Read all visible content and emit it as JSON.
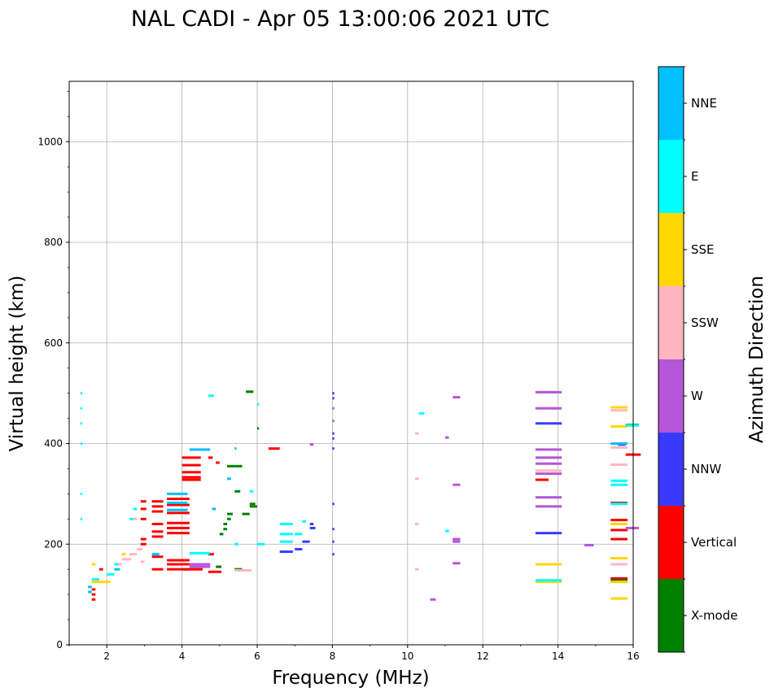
{
  "chart_data": {
    "type": "scatter",
    "title": "NAL CADI - Apr 05 13:00:06 2021 UTC",
    "xlabel": "Frequency (MHz)",
    "ylabel": "Virtual height (km)",
    "xlim": [
      1.0,
      16.0
    ],
    "ylim": [
      0,
      1120
    ],
    "xticks": [
      2,
      4,
      6,
      8,
      10,
      12,
      14,
      16
    ],
    "yticks": [
      0,
      200,
      400,
      600,
      800,
      1000
    ],
    "grid": true,
    "colorbar": {
      "label": "Azimuth Direction",
      "categories": [
        {
          "name": "X-mode",
          "color": "#008000"
        },
        {
          "name": "Vertical",
          "color": "#ff0000"
        },
        {
          "name": "NNW",
          "color": "#3a3aff"
        },
        {
          "name": "W",
          "color": "#b556d8"
        },
        {
          "name": "SSW",
          "color": "#ffb6c1"
        },
        {
          "name": "SSE",
          "color": "#ffd700"
        },
        {
          "name": "E",
          "color": "#00ffff"
        },
        {
          "name": "NNE",
          "color": "#00bfff"
        }
      ]
    },
    "series": [
      {
        "name": "Vertical",
        "points": [
          [
            1.6,
            90,
            0.1
          ],
          [
            1.6,
            100,
            0.1
          ],
          [
            1.6,
            110,
            0.1
          ],
          [
            1.8,
            150,
            0.1
          ],
          [
            2.9,
            200,
            0.15
          ],
          [
            2.9,
            210,
            0.15
          ],
          [
            2.9,
            250,
            0.15
          ],
          [
            2.9,
            270,
            0.15
          ],
          [
            2.9,
            285,
            0.15
          ],
          [
            3.2,
            150,
            0.3
          ],
          [
            3.2,
            175,
            0.3
          ],
          [
            3.2,
            215,
            0.3
          ],
          [
            3.2,
            225,
            0.3
          ],
          [
            3.2,
            240,
            0.3
          ],
          [
            3.2,
            265,
            0.3
          ],
          [
            3.2,
            275,
            0.3
          ],
          [
            3.2,
            285,
            0.3
          ],
          [
            3.6,
            150,
            0.6
          ],
          [
            3.6,
            160,
            0.6
          ],
          [
            3.6,
            168,
            0.6
          ],
          [
            3.6,
            222,
            0.6
          ],
          [
            3.6,
            232,
            0.6
          ],
          [
            3.6,
            242,
            0.6
          ],
          [
            3.6,
            262,
            0.6
          ],
          [
            3.6,
            278,
            0.6
          ],
          [
            3.6,
            290,
            0.6
          ],
          [
            4.0,
            150,
            0.55
          ],
          [
            4.0,
            328,
            0.5
          ],
          [
            4.0,
            333,
            0.5
          ],
          [
            4.0,
            343,
            0.5
          ],
          [
            4.0,
            357,
            0.5
          ],
          [
            4.0,
            372,
            0.5
          ],
          [
            4.7,
            145,
            0.2
          ],
          [
            4.7,
            180,
            0.15
          ],
          [
            4.7,
            372,
            0.12
          ],
          [
            4.9,
            145,
            0.15
          ],
          [
            4.9,
            362,
            0.1
          ],
          [
            6.3,
            390,
            0.3
          ],
          [
            13.4,
            328,
            0.35
          ],
          [
            15.4,
            132,
            0.45
          ],
          [
            15.4,
            210,
            0.45
          ],
          [
            15.4,
            228,
            0.45
          ],
          [
            15.4,
            248,
            0.45
          ],
          [
            15.4,
            282,
            0.45
          ],
          [
            15.8,
            378,
            0.4
          ]
        ]
      },
      {
        "name": "X-mode",
        "points": [
          [
            4.9,
            155,
            0.15
          ],
          [
            5.0,
            220,
            0.1
          ],
          [
            5.1,
            230,
            0.1
          ],
          [
            5.2,
            260,
            0.15
          ],
          [
            5.1,
            240,
            0.1
          ],
          [
            5.2,
            250,
            0.1
          ],
          [
            5.2,
            355,
            0.2
          ],
          [
            5.4,
            355,
            0.2
          ],
          [
            5.4,
            305,
            0.15
          ],
          [
            5.6,
            260,
            0.2
          ],
          [
            5.8,
            275,
            0.2
          ],
          [
            5.8,
            280,
            0.15
          ],
          [
            5.7,
            503,
            0.2
          ],
          [
            6.0,
            430,
            0.05
          ],
          [
            5.4,
            150,
            0.2
          ],
          [
            15.4,
            128,
            0.45
          ],
          [
            15.8,
            437,
            0.35
          ]
        ]
      },
      {
        "name": "NNW",
        "points": [
          [
            6.6,
            185,
            0.35
          ],
          [
            7.0,
            190,
            0.2
          ],
          [
            7.2,
            205,
            0.2
          ],
          [
            7.4,
            232,
            0.15
          ],
          [
            7.4,
            240,
            0.1
          ],
          [
            8.0,
            180,
            0.05
          ],
          [
            8.0,
            205,
            0.05
          ],
          [
            8.0,
            230,
            0.05
          ],
          [
            8.0,
            280,
            0.05
          ],
          [
            8.0,
            390,
            0.05
          ],
          [
            8.0,
            410,
            0.05
          ],
          [
            8.0,
            420,
            0.05
          ],
          [
            8.0,
            490,
            0.05
          ],
          [
            8.0,
            500,
            0.05
          ],
          [
            13.4,
            222,
            0.7
          ],
          [
            13.4,
            440,
            0.7
          ],
          [
            15.6,
            398,
            0.2
          ]
        ]
      },
      {
        "name": "W",
        "points": [
          [
            4.2,
            155,
            0.55
          ],
          [
            4.2,
            160,
            0.55
          ],
          [
            11.2,
            162,
            0.2
          ],
          [
            11.2,
            205,
            0.2
          ],
          [
            11.2,
            210,
            0.2
          ],
          [
            11.2,
            318,
            0.2
          ],
          [
            11.2,
            492,
            0.2
          ],
          [
            10.6,
            90,
            0.15
          ],
          [
            13.4,
            275,
            0.7
          ],
          [
            13.4,
            293,
            0.7
          ],
          [
            13.4,
            340,
            0.7
          ],
          [
            13.4,
            360,
            0.7
          ],
          [
            13.4,
            372,
            0.7
          ],
          [
            13.4,
            388,
            0.7
          ],
          [
            13.4,
            470,
            0.7
          ],
          [
            13.4,
            502,
            0.7
          ],
          [
            14.7,
            198,
            0.25
          ],
          [
            15.8,
            232,
            0.35
          ],
          [
            7.4,
            398,
            0.1
          ],
          [
            8.0,
            445,
            0.05
          ],
          [
            8.0,
            470,
            0.05
          ],
          [
            11.0,
            412,
            0.1
          ]
        ]
      },
      {
        "name": "SSW",
        "points": [
          [
            2.2,
            160,
            0.2
          ],
          [
            2.4,
            170,
            0.2
          ],
          [
            2.6,
            180,
            0.2
          ],
          [
            2.8,
            190,
            0.15
          ],
          [
            2.7,
            250,
            0.1
          ],
          [
            2.9,
            165,
            0.1
          ],
          [
            2.5,
            170,
            0.15
          ],
          [
            5.4,
            148,
            0.45
          ],
          [
            10.2,
            150,
            0.1
          ],
          [
            10.2,
            240,
            0.1
          ],
          [
            10.2,
            330,
            0.1
          ],
          [
            10.2,
            420,
            0.1
          ],
          [
            13.4,
            346,
            0.7
          ],
          [
            15.4,
            160,
            0.45
          ],
          [
            15.4,
            358,
            0.45
          ],
          [
            15.4,
            392,
            0.45
          ],
          [
            15.4,
            466,
            0.45
          ]
        ]
      },
      {
        "name": "SSE",
        "points": [
          [
            1.6,
            125,
            0.3
          ],
          [
            1.9,
            125,
            0.2
          ],
          [
            1.6,
            160,
            0.1
          ],
          [
            2.4,
            180,
            0.1
          ],
          [
            13.4,
            125,
            0.7
          ],
          [
            13.4,
            160,
            0.7
          ],
          [
            15.4,
            92,
            0.45
          ],
          [
            15.4,
            125,
            0.45
          ],
          [
            15.4,
            172,
            0.45
          ],
          [
            15.4,
            240,
            0.45
          ],
          [
            15.4,
            434,
            0.45
          ],
          [
            15.4,
            472,
            0.45
          ]
        ]
      },
      {
        "name": "E",
        "points": [
          [
            1.3,
            500,
            0.05
          ],
          [
            1.3,
            470,
            0.05
          ],
          [
            1.3,
            440,
            0.05
          ],
          [
            1.3,
            400,
            0.05
          ],
          [
            1.3,
            300,
            0.05
          ],
          [
            1.3,
            250,
            0.05
          ],
          [
            1.6,
            130,
            0.2
          ],
          [
            2.0,
            140,
            0.2
          ],
          [
            2.2,
            160,
            0.1
          ],
          [
            2.6,
            250,
            0.1
          ],
          [
            2.7,
            270,
            0.1
          ],
          [
            4.2,
            182,
            0.55
          ],
          [
            4.7,
            495,
            0.15
          ],
          [
            5.4,
            200,
            0.1
          ],
          [
            6.0,
            200,
            0.2
          ],
          [
            6.0,
            478,
            0.05
          ],
          [
            5.8,
            305,
            0.1
          ],
          [
            6.6,
            205,
            0.35
          ],
          [
            6.6,
            220,
            0.35
          ],
          [
            6.6,
            240,
            0.35
          ],
          [
            7.0,
            220,
            0.2
          ],
          [
            7.2,
            245,
            0.1
          ],
          [
            10.3,
            460,
            0.15
          ],
          [
            11.0,
            226,
            0.1
          ],
          [
            13.4,
            128,
            0.7
          ],
          [
            15.4,
            280,
            0.45
          ],
          [
            15.4,
            318,
            0.45
          ],
          [
            15.4,
            326,
            0.45
          ],
          [
            15.8,
            436,
            0.35
          ]
        ]
      },
      {
        "name": "NNE",
        "points": [
          [
            1.5,
            105,
            0.1
          ],
          [
            1.5,
            115,
            0.1
          ],
          [
            2.2,
            150,
            0.15
          ],
          [
            3.2,
            180,
            0.2
          ],
          [
            3.6,
            268,
            0.55
          ],
          [
            3.6,
            282,
            0.55
          ],
          [
            3.6,
            300,
            0.55
          ],
          [
            4.2,
            388,
            0.55
          ],
          [
            4.8,
            270,
            0.1
          ],
          [
            5.2,
            330,
            0.1
          ],
          [
            5.4,
            390,
            0.05
          ],
          [
            15.4,
            400,
            0.45
          ]
        ]
      }
    ]
  }
}
